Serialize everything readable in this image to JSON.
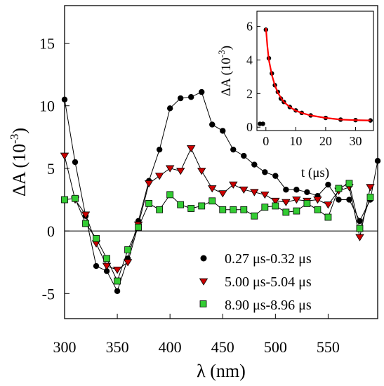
{
  "chart_data": [
    {
      "type": "line",
      "xlabel": "λ (nm)",
      "ylabel_main": "ΔA (10",
      "ylabel_exp": "-3",
      "ylabel_close": ")",
      "xlim": [
        300,
        597
      ],
      "ylim": [
        -7,
        18
      ],
      "xticks": [
        300,
        350,
        400,
        450,
        500,
        550
      ],
      "yticks": [
        -5,
        0,
        5,
        10,
        15
      ],
      "zero_line": true,
      "legend_position": "bottom-right",
      "series": [
        {
          "name": "0.27 μs-0.32 μs",
          "marker": "circle",
          "color": "#000000",
          "x": [
            300,
            310,
            320,
            330,
            340,
            350,
            360,
            370,
            380,
            390,
            400,
            410,
            420,
            430,
            440,
            450,
            460,
            470,
            480,
            490,
            500,
            510,
            520,
            530,
            540,
            550,
            560,
            570,
            580,
            590,
            597
          ],
          "y": [
            10.5,
            5.5,
            1.2,
            -2.8,
            -3.2,
            -4.8,
            -2.2,
            0.8,
            4.0,
            6.5,
            9.8,
            10.6,
            10.7,
            11.1,
            8.5,
            8.0,
            6.5,
            6.0,
            5.3,
            4.7,
            4.4,
            3.3,
            3.3,
            3.1,
            2.8,
            3.7,
            2.5,
            2.5,
            0.8,
            2.5,
            5.6
          ]
        },
        {
          "name": "5.00 μs-5.04 μs",
          "marker": "triangle-down",
          "color": "#cc0000",
          "x": [
            300,
            310,
            320,
            330,
            340,
            350,
            360,
            370,
            380,
            390,
            400,
            410,
            420,
            430,
            440,
            450,
            460,
            470,
            480,
            490,
            500,
            510,
            520,
            530,
            540,
            550,
            560,
            570,
            580,
            590
          ],
          "y": [
            6.0,
            2.5,
            1.3,
            -1.0,
            -2.8,
            -3.1,
            -2.5,
            0.5,
            3.8,
            4.4,
            5.0,
            4.8,
            6.6,
            4.8,
            3.4,
            3.0,
            3.7,
            3.3,
            3.1,
            2.9,
            2.4,
            2.3,
            2.5,
            2.4,
            2.5,
            2.1,
            3.2,
            3.5,
            -0.5,
            3.5
          ]
        },
        {
          "name": "8.90 μs-8.96 μs",
          "marker": "square",
          "color": "#33cc33",
          "x": [
            300,
            310,
            320,
            330,
            340,
            350,
            360,
            370,
            380,
            390,
            400,
            410,
            420,
            430,
            440,
            450,
            460,
            470,
            480,
            490,
            500,
            510,
            520,
            530,
            540,
            550,
            560,
            570,
            580,
            590
          ],
          "y": [
            2.5,
            2.6,
            0.6,
            -0.6,
            -2.2,
            -4.0,
            -1.5,
            0.3,
            2.2,
            1.7,
            2.9,
            2.1,
            1.8,
            2.0,
            2.4,
            1.7,
            1.7,
            1.7,
            1.2,
            1.9,
            2.0,
            1.5,
            1.6,
            2.2,
            1.7,
            1.1,
            3.4,
            3.8,
            0.2,
            2.7
          ]
        }
      ]
    },
    {
      "type": "scatter",
      "xlabel": "t (μs)",
      "ylabel_main": "ΔA (10",
      "ylabel_exp": "-3",
      "ylabel_close": ")",
      "xlim": [
        -3,
        36
      ],
      "ylim": [
        -0.2,
        6.9
      ],
      "xticks": [
        0,
        10,
        20,
        30
      ],
      "yticks": [
        0,
        2,
        4,
        6
      ],
      "grid": false,
      "series": [
        {
          "name": "",
          "kind": "points",
          "color": "#000000",
          "x": [
            -2,
            -1,
            0,
            1,
            2,
            3,
            4,
            5,
            6,
            8,
            10,
            12,
            15,
            20,
            25,
            30,
            35
          ],
          "y": [
            0.2,
            0.2,
            5.8,
            4.1,
            3.2,
            2.5,
            2.1,
            1.7,
            1.5,
            1.2,
            1.0,
            0.85,
            0.7,
            0.55,
            0.45,
            0.42,
            0.4
          ]
        },
        {
          "name": "",
          "kind": "fit",
          "color": "#ff0000",
          "x": [
            0,
            0.5,
            1,
            2,
            3,
            4,
            5,
            6,
            8,
            10,
            12,
            15,
            20,
            25,
            30,
            35
          ],
          "y": [
            5.9,
            4.8,
            4.0,
            3.1,
            2.5,
            2.05,
            1.75,
            1.5,
            1.2,
            0.98,
            0.85,
            0.7,
            0.55,
            0.45,
            0.42,
            0.4
          ]
        }
      ]
    }
  ]
}
